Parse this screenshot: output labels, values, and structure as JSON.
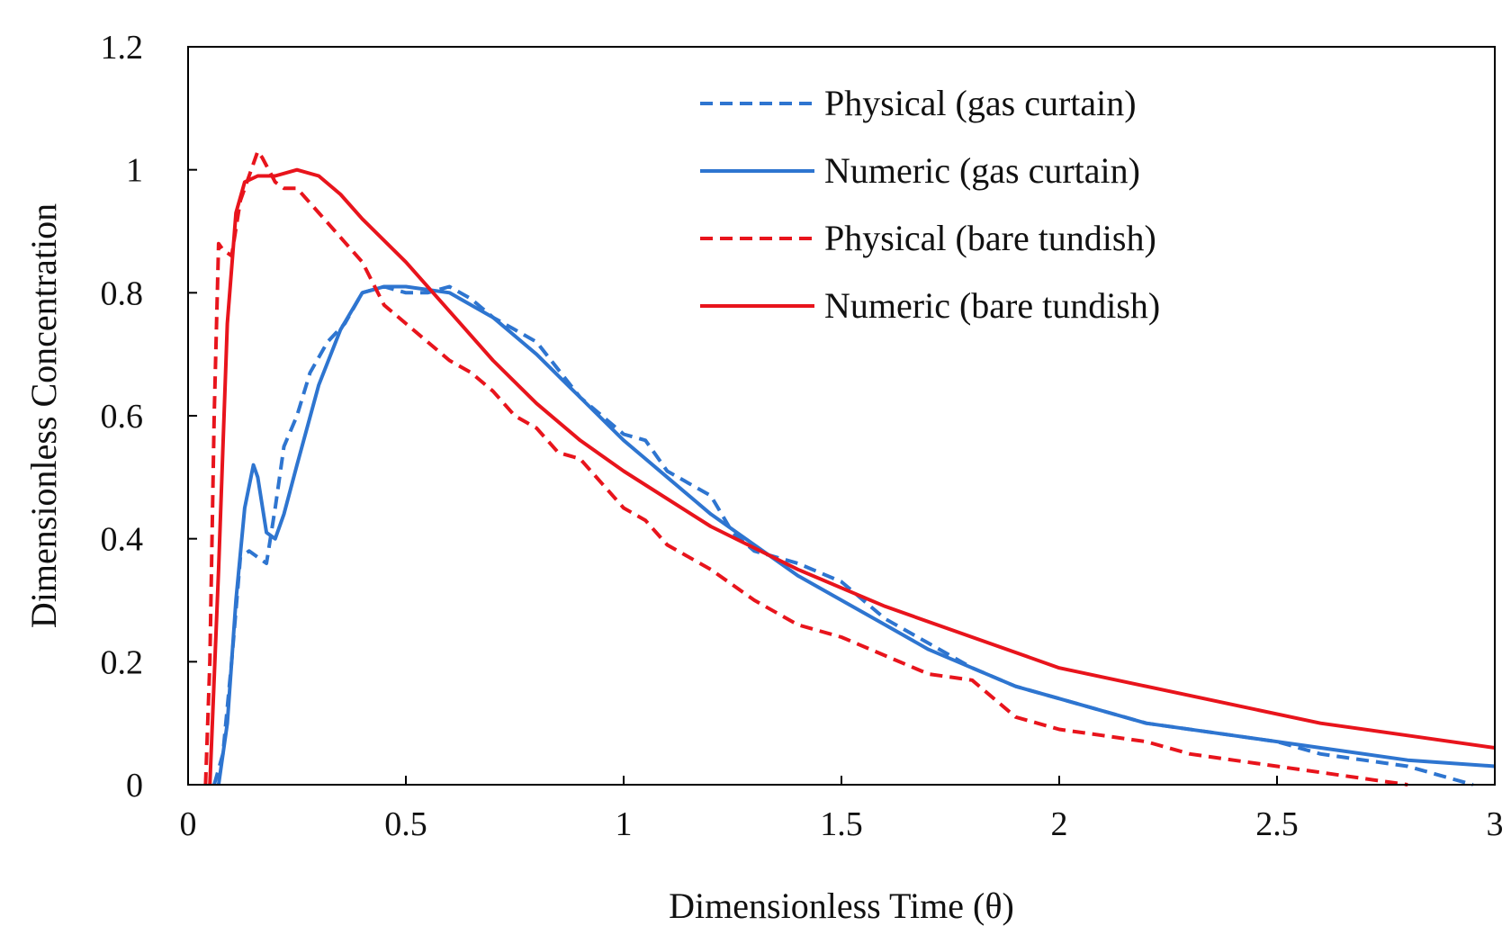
{
  "chart_data": {
    "type": "line",
    "title": "",
    "xlabel": "Dimensionless Time (θ)",
    "ylabel": "Dimensionless Concentration",
    "xlim": [
      0,
      3
    ],
    "ylim": [
      0,
      1.2
    ],
    "x_ticks": [
      "0",
      "0.5",
      "1",
      "1.5",
      "2",
      "2.5",
      "3"
    ],
    "y_ticks": [
      "0",
      "0.2",
      "0.4",
      "0.6",
      "0.8",
      "1",
      "1.2"
    ],
    "legend_position": "top-right",
    "grid": false,
    "series": [
      {
        "name": "Physical (gas curtain)",
        "color": "#2e75d0",
        "style": "dashed",
        "x": [
          0.06,
          0.08,
          0.1,
          0.12,
          0.14,
          0.16,
          0.18,
          0.2,
          0.22,
          0.25,
          0.28,
          0.32,
          0.36,
          0.4,
          0.45,
          0.5,
          0.55,
          0.6,
          0.65,
          0.7,
          0.75,
          0.8,
          0.9,
          1.0,
          1.05,
          1.1,
          1.15,
          1.2,
          1.25,
          1.3,
          1.4,
          1.5,
          1.6,
          1.7,
          1.8,
          1.9,
          2.0,
          2.1,
          2.2,
          2.3,
          2.4,
          2.5,
          2.6,
          2.7,
          2.8,
          2.9,
          2.95
        ],
        "y": [
          0,
          0.05,
          0.2,
          0.37,
          0.38,
          0.37,
          0.36,
          0.45,
          0.55,
          0.6,
          0.67,
          0.72,
          0.75,
          0.8,
          0.81,
          0.8,
          0.8,
          0.81,
          0.79,
          0.76,
          0.74,
          0.72,
          0.63,
          0.57,
          0.56,
          0.51,
          0.49,
          0.47,
          0.41,
          0.38,
          0.36,
          0.33,
          0.27,
          0.23,
          0.19,
          0.16,
          0.14,
          0.12,
          0.1,
          0.09,
          0.08,
          0.07,
          0.05,
          0.04,
          0.03,
          0.01,
          0.0
        ]
      },
      {
        "name": "Numeric (gas curtain)",
        "color": "#2e75d0",
        "style": "solid",
        "x": [
          0.07,
          0.09,
          0.11,
          0.13,
          0.15,
          0.16,
          0.18,
          0.2,
          0.22,
          0.25,
          0.3,
          0.35,
          0.4,
          0.45,
          0.5,
          0.6,
          0.7,
          0.8,
          0.9,
          1.0,
          1.1,
          1.2,
          1.3,
          1.4,
          1.5,
          1.6,
          1.7,
          1.8,
          1.9,
          2.0,
          2.2,
          2.4,
          2.6,
          2.8,
          3.0
        ],
        "y": [
          0.0,
          0.1,
          0.3,
          0.45,
          0.52,
          0.5,
          0.41,
          0.4,
          0.44,
          0.52,
          0.65,
          0.74,
          0.8,
          0.81,
          0.81,
          0.8,
          0.76,
          0.7,
          0.63,
          0.56,
          0.5,
          0.44,
          0.39,
          0.34,
          0.3,
          0.26,
          0.22,
          0.19,
          0.16,
          0.14,
          0.1,
          0.08,
          0.06,
          0.04,
          0.03
        ]
      },
      {
        "name": "Physical (bare tundish)",
        "color": "#e8141c",
        "style": "dashed",
        "x": [
          0.04,
          0.05,
          0.06,
          0.07,
          0.08,
          0.1,
          0.12,
          0.14,
          0.16,
          0.17,
          0.2,
          0.22,
          0.25,
          0.3,
          0.35,
          0.4,
          0.45,
          0.5,
          0.55,
          0.6,
          0.65,
          0.7,
          0.75,
          0.8,
          0.85,
          0.9,
          0.95,
          1.0,
          1.05,
          1.1,
          1.2,
          1.3,
          1.4,
          1.5,
          1.6,
          1.7,
          1.8,
          1.85,
          1.9,
          2.0,
          2.1,
          2.2,
          2.3,
          2.4,
          2.5,
          2.6,
          2.7,
          2.8
        ],
        "y": [
          0.0,
          0.2,
          0.6,
          0.88,
          0.87,
          0.86,
          0.95,
          0.99,
          1.03,
          1.02,
          0.98,
          0.97,
          0.97,
          0.93,
          0.89,
          0.85,
          0.78,
          0.75,
          0.72,
          0.69,
          0.67,
          0.64,
          0.6,
          0.58,
          0.54,
          0.53,
          0.49,
          0.45,
          0.43,
          0.39,
          0.35,
          0.3,
          0.26,
          0.24,
          0.21,
          0.18,
          0.17,
          0.14,
          0.11,
          0.09,
          0.08,
          0.07,
          0.05,
          0.04,
          0.03,
          0.02,
          0.01,
          0.0
        ]
      },
      {
        "name": "Numeric (bare tundish)",
        "color": "#e8141c",
        "style": "solid",
        "x": [
          0.05,
          0.07,
          0.09,
          0.11,
          0.13,
          0.16,
          0.2,
          0.25,
          0.3,
          0.35,
          0.4,
          0.5,
          0.6,
          0.7,
          0.8,
          0.9,
          1.0,
          1.2,
          1.4,
          1.6,
          1.8,
          2.0,
          2.2,
          2.4,
          2.6,
          2.8,
          3.0
        ],
        "y": [
          0.0,
          0.35,
          0.75,
          0.93,
          0.98,
          0.99,
          0.99,
          1.0,
          0.99,
          0.96,
          0.92,
          0.85,
          0.77,
          0.69,
          0.62,
          0.56,
          0.51,
          0.42,
          0.35,
          0.29,
          0.24,
          0.19,
          0.16,
          0.13,
          0.1,
          0.08,
          0.06
        ]
      }
    ]
  }
}
